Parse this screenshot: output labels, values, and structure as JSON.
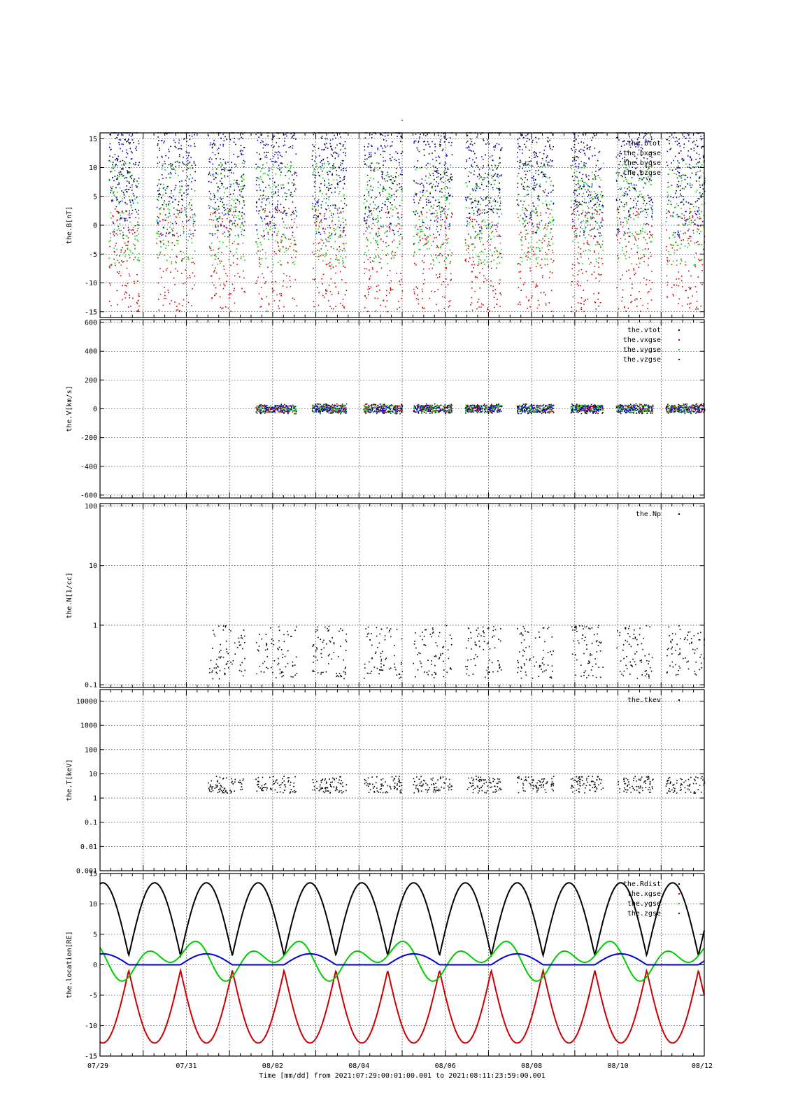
{
  "figure": {
    "title": "-",
    "xlabel": "Time [mm/dd]  from 2021:07:29:00:01:00.001  to  2021:08:11:23:59:00.001"
  },
  "chart_data": [
    {
      "type": "scatter",
      "ylabel": "the.B[nT]",
      "yscale": "linear",
      "ylim": [
        -16,
        16
      ],
      "yticks": [
        "15",
        "10",
        "5",
        "0",
        "-5",
        "-10",
        "-15"
      ],
      "ytick_values": [
        15,
        10,
        5,
        0,
        -5,
        -10,
        -15
      ],
      "legend_placement": "top-right",
      "series": [
        {
          "name": "the.btot",
          "color": "#000000"
        },
        {
          "name": "the.bxgse",
          "color": "#cc0000"
        },
        {
          "name": "the.bygse",
          "color": "#00cc00"
        },
        {
          "name": "the.bzgse",
          "color": "#0000cc"
        }
      ]
    },
    {
      "type": "scatter",
      "ylabel": "the.V[km/s]",
      "yscale": "linear",
      "ylim": [
        -620,
        620
      ],
      "yticks": [
        "600",
        "400",
        "200",
        "0",
        "-200",
        "-400",
        "-600"
      ],
      "ytick_values": [
        600,
        400,
        200,
        0,
        -200,
        -400,
        -600
      ],
      "legend_placement": "top-right",
      "series": [
        {
          "name": "the.vtot",
          "color": "#000000"
        },
        {
          "name": "the.vxgse",
          "color": "#cc0000"
        },
        {
          "name": "the.vygse",
          "color": "#00cc00"
        },
        {
          "name": "the.vzgse",
          "color": "#0000cc"
        }
      ]
    },
    {
      "type": "scatter",
      "ylabel": "the.N[1/cc]",
      "yscale": "log",
      "ylim": [
        0.09,
        110
      ],
      "yticks": [
        "100",
        "10",
        "1",
        "0.1"
      ],
      "ytick_values": [
        100,
        10,
        1,
        0.1
      ],
      "legend_placement": "top-right",
      "series": [
        {
          "name": "the.Np",
          "color": "#000000"
        }
      ]
    },
    {
      "type": "scatter",
      "ylabel": "the.T[keV]",
      "yscale": "log",
      "ylim": [
        0.001,
        30000
      ],
      "yticks": [
        "10000",
        "1000",
        "100",
        "10",
        "1",
        "0.1",
        "0.01",
        "0.001"
      ],
      "ytick_values": [
        10000,
        1000,
        100,
        10,
        1,
        0.1,
        0.01,
        0.001
      ],
      "legend_placement": "top-right",
      "series": [
        {
          "name": "the.tkev",
          "color": "#000000"
        }
      ]
    },
    {
      "type": "line",
      "ylabel": "the.location[RE]",
      "yscale": "linear",
      "ylim": [
        -15,
        15
      ],
      "yticks": [
        "15",
        "10",
        "5",
        "0",
        "-5",
        "-10",
        "-15"
      ],
      "ytick_values": [
        15,
        10,
        5,
        0,
        -5,
        -10,
        -15
      ],
      "legend_placement": "top-right",
      "orbit_period_days": 1.2,
      "series": [
        {
          "name": "the.Rdist",
          "color": "#000000",
          "amplitude": 13.3
        },
        {
          "name": "the.xgse",
          "color": "#cc0000",
          "amplitude": 13.0
        },
        {
          "name": "the.ygse",
          "color": "#00cc00",
          "amplitude": 5.0
        },
        {
          "name": "the.zgse",
          "color": "#0000cc",
          "amplitude": 2.0
        }
      ]
    }
  ],
  "xaxis": {
    "start": "07/29",
    "end": "08/12",
    "range_days": [
      0,
      14
    ],
    "tick_labels": [
      "07/29",
      "07/31",
      "08/02",
      "08/04",
      "08/06",
      "08/08",
      "08/10",
      "08/12"
    ],
    "tick_days": [
      0,
      2,
      4,
      6,
      8,
      10,
      12,
      14
    ]
  }
}
